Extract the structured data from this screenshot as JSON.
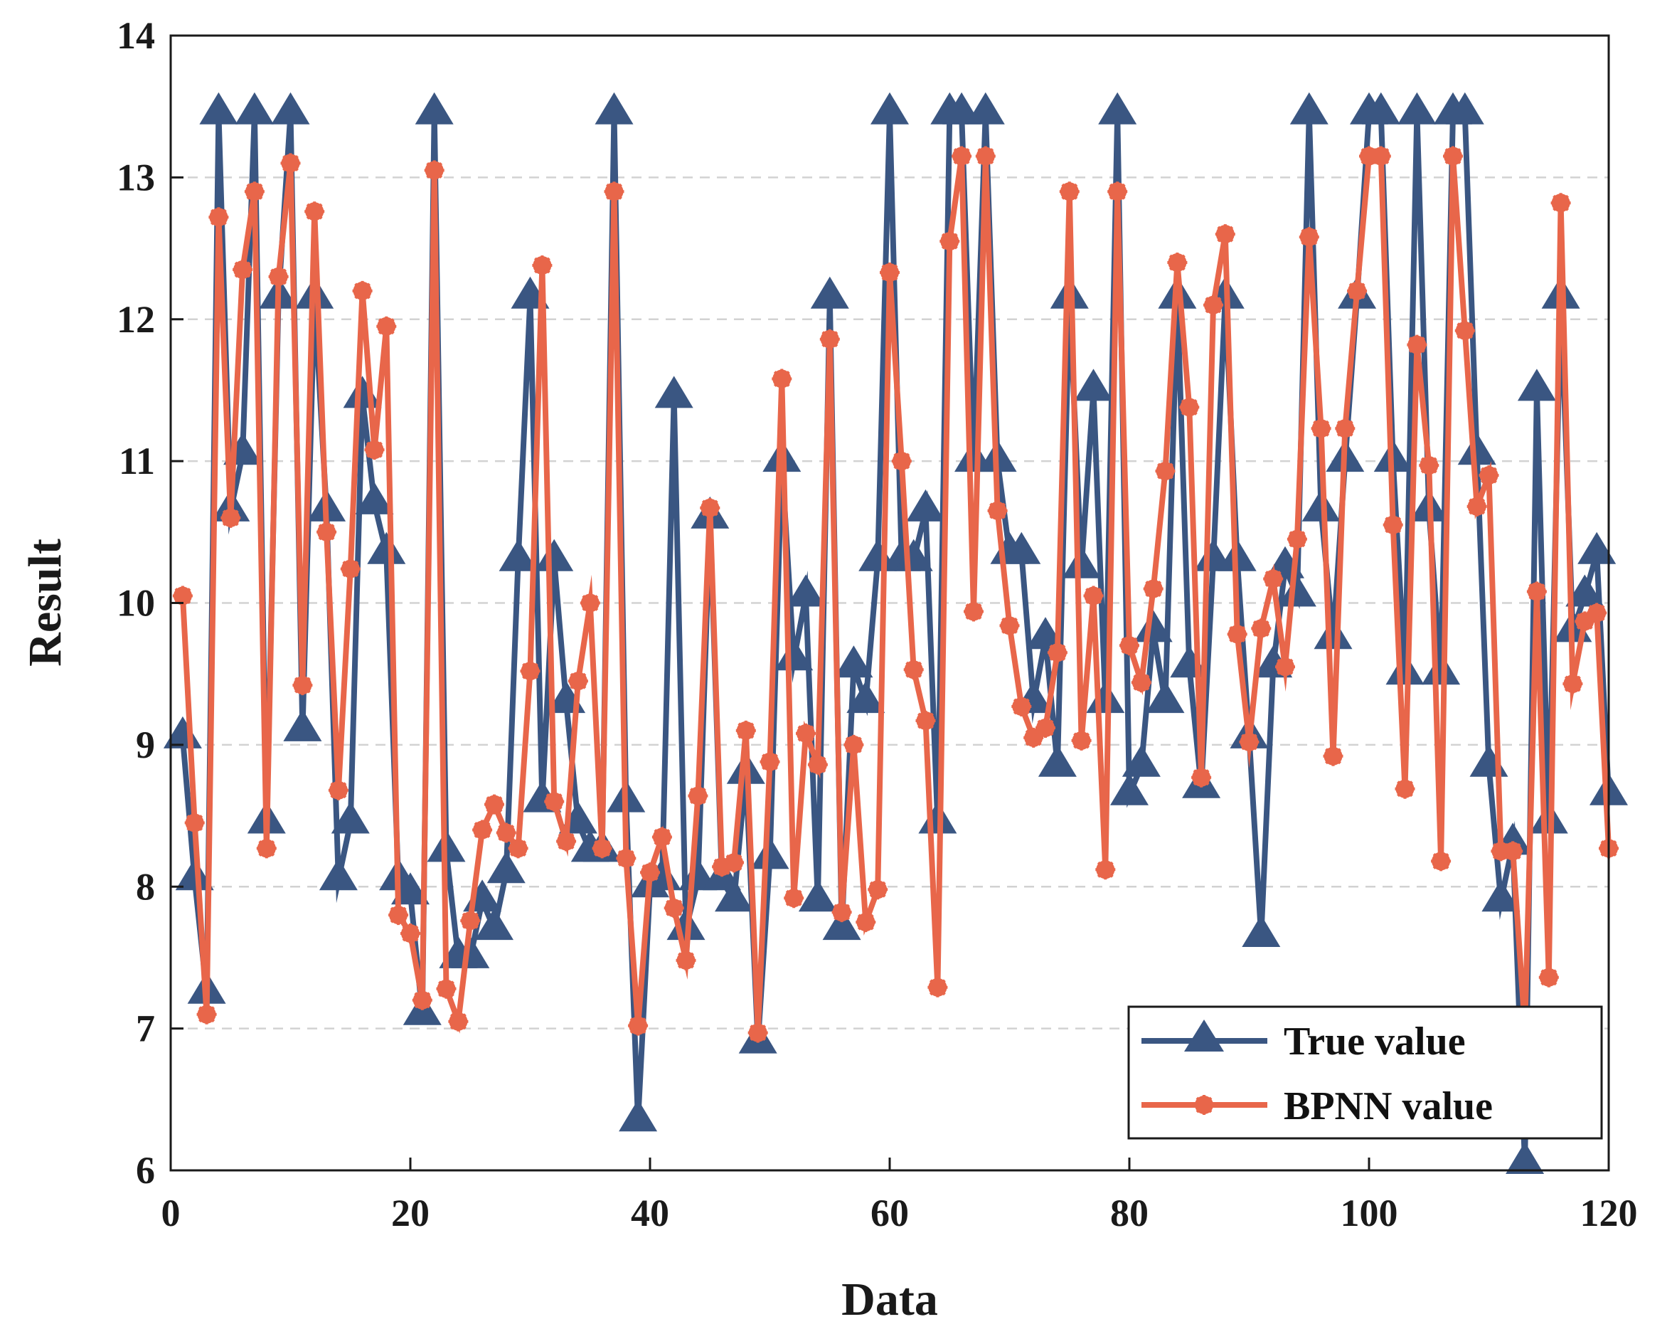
{
  "chart_data": {
    "type": "line",
    "title": "",
    "xlabel": "Data",
    "ylabel": "Result",
    "xlim": [
      0,
      120
    ],
    "ylim": [
      6,
      14
    ],
    "xticks": [
      0,
      20,
      40,
      60,
      80,
      100,
      120
    ],
    "yticks": [
      6,
      7,
      8,
      9,
      10,
      11,
      12,
      13,
      14
    ],
    "grid": "horizontal dashed",
    "legend_position": "bottom-right",
    "x": [
      1,
      2,
      3,
      4,
      5,
      6,
      7,
      8,
      9,
      10,
      11,
      12,
      13,
      14,
      15,
      16,
      17,
      18,
      19,
      20,
      21,
      22,
      23,
      24,
      25,
      26,
      27,
      28,
      29,
      30,
      31,
      32,
      33,
      34,
      35,
      36,
      37,
      38,
      39,
      40,
      41,
      42,
      43,
      44,
      45,
      46,
      47,
      48,
      49,
      50,
      51,
      52,
      53,
      54,
      55,
      56,
      57,
      58,
      59,
      60,
      61,
      62,
      63,
      64,
      65,
      66,
      67,
      68,
      69,
      70,
      71,
      72,
      73,
      74,
      75,
      76,
      77,
      78,
      79,
      80,
      81,
      82,
      83,
      84,
      85,
      86,
      87,
      88,
      89,
      90,
      91,
      92,
      93,
      94,
      95,
      96,
      97,
      98,
      99,
      100,
      101,
      102,
      103,
      104,
      105,
      106,
      107,
      108,
      109,
      110,
      111,
      112,
      113,
      114,
      115,
      116,
      117,
      118,
      119,
      120
    ],
    "series": [
      {
        "name": "True value",
        "color": "#3a5682",
        "marker": "triangle",
        "values": [
          9.05,
          8.05,
          7.25,
          13.45,
          10.65,
          11.05,
          13.45,
          8.45,
          12.15,
          13.45,
          9.1,
          12.15,
          10.65,
          8.05,
          8.45,
          11.45,
          10.7,
          10.35,
          8.05,
          7.95,
          7.1,
          13.45,
          8.25,
          7.5,
          7.5,
          7.9,
          7.7,
          8.1,
          10.3,
          12.15,
          8.6,
          10.3,
          9.3,
          8.45,
          8.25,
          8.25,
          13.45,
          8.6,
          6.35,
          8.0,
          8.05,
          11.45,
          7.7,
          8.05,
          10.6,
          8.05,
          7.9,
          8.8,
          6.9,
          8.2,
          11.0,
          9.6,
          10.05,
          7.9,
          12.15,
          7.7,
          9.55,
          9.3,
          10.3,
          13.45,
          10.3,
          10.3,
          10.65,
          8.45,
          13.45,
          13.45,
          11.0,
          13.45,
          11.0,
          10.35,
          10.35,
          9.3,
          9.75,
          8.85,
          12.15,
          10.25,
          11.5,
          9.3,
          13.45,
          8.65,
          8.85,
          9.8,
          9.3,
          12.15,
          9.55,
          8.7,
          10.3,
          12.15,
          10.3,
          9.05,
          7.65,
          9.55,
          10.25,
          10.05,
          13.45,
          10.65,
          9.75,
          11.0,
          12.15,
          13.45,
          13.45,
          11.0,
          9.5,
          13.45,
          10.65,
          9.5,
          13.45,
          13.45,
          11.05,
          8.85,
          7.9,
          8.3,
          6.05,
          11.5,
          8.45,
          12.15,
          9.8,
          10.05,
          10.35,
          8.65
        ]
      },
      {
        "name": "BPNN value",
        "color": "#e8664a",
        "marker": "star",
        "values": [
          10.05,
          8.45,
          7.1,
          12.72,
          10.6,
          12.35,
          12.9,
          8.27,
          12.3,
          13.1,
          9.42,
          12.76,
          10.5,
          8.68,
          10.24,
          12.2,
          11.08,
          11.95,
          7.8,
          7.67,
          7.2,
          13.05,
          7.28,
          7.05,
          7.76,
          8.4,
          8.58,
          8.38,
          8.27,
          9.52,
          12.38,
          8.6,
          8.32,
          9.45,
          10.0,
          8.27,
          12.9,
          8.2,
          7.02,
          8.1,
          8.35,
          7.85,
          7.48,
          8.64,
          10.67,
          8.14,
          8.17,
          9.1,
          6.97,
          8.88,
          11.58,
          7.92,
          9.08,
          8.86,
          11.86,
          7.82,
          9.0,
          7.75,
          7.98,
          12.33,
          11.0,
          9.53,
          9.17,
          7.29,
          12.55,
          13.15,
          9.94,
          13.15,
          10.65,
          9.84,
          9.27,
          9.05,
          9.12,
          9.65,
          12.9,
          9.03,
          10.05,
          8.12,
          12.9,
          9.7,
          9.44,
          10.1,
          10.93,
          12.4,
          11.38,
          8.77,
          12.1,
          12.6,
          9.78,
          9.02,
          9.82,
          10.17,
          9.55,
          10.45,
          12.58,
          11.23,
          8.92,
          11.23,
          12.2,
          13.15,
          13.15,
          10.55,
          8.69,
          11.82,
          10.97,
          8.18,
          13.15,
          11.92,
          10.68,
          10.9,
          8.25,
          8.25,
          7.0,
          10.08,
          7.36,
          12.82,
          9.43,
          9.87,
          9.93,
          8.27
        ]
      }
    ]
  }
}
